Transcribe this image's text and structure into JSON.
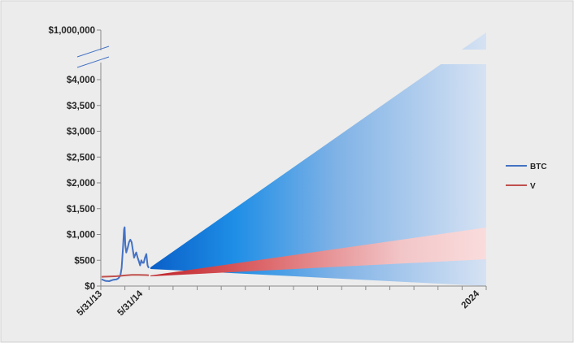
{
  "chart_data": {
    "type": "line",
    "title": "",
    "xlabel": "",
    "ylabel": "",
    "y_axis": {
      "broken": true,
      "lower_range": [
        0,
        4000
      ],
      "tick_step": 500,
      "top_label_value": 1000000,
      "tick_labels": [
        "$0",
        "$500",
        "$1,000",
        "$1,500",
        "$2,000",
        "$2,500",
        "$3,000",
        "$3,500",
        "$4,000",
        "$1,000,000"
      ]
    },
    "x_axis": {
      "tick_labels": [
        "5/31/13",
        "5/31/14",
        "2024"
      ]
    },
    "legend": {
      "placement": "right",
      "entries": [
        {
          "name": "BTC",
          "color": "#4472c4"
        },
        {
          "name": "V",
          "color": "#c0504d"
        }
      ]
    },
    "series": [
      {
        "name": "BTC",
        "color": "#4472c4",
        "x": [
          "2013-05-31",
          "2013-06-30",
          "2013-07-31",
          "2013-08-31",
          "2013-09-30",
          "2013-10-15",
          "2013-10-31",
          "2013-11-10",
          "2013-11-20",
          "2013-11-30",
          "2013-12-05",
          "2013-12-10",
          "2013-12-18",
          "2013-12-24",
          "2013-12-31",
          "2014-01-10",
          "2014-01-20",
          "2014-01-31",
          "2014-02-10",
          "2014-02-20",
          "2014-02-28",
          "2014-03-10",
          "2014-03-20",
          "2014-03-31",
          "2014-04-10",
          "2014-04-20",
          "2014-04-30",
          "2014-05-10",
          "2014-05-20",
          "2014-05-31",
          "2014-06-10",
          "2014-06-20"
        ],
        "values": [
          130,
          100,
          95,
          120,
          130,
          150,
          200,
          350,
          700,
          1100,
          1140,
          800,
          650,
          700,
          750,
          850,
          900,
          850,
          700,
          550,
          600,
          650,
          560,
          480,
          400,
          500,
          450,
          450,
          550,
          620,
          400,
          350
        ]
      },
      {
        "name": "V",
        "color": "#c0504d",
        "x": [
          "2013-05-31",
          "2013-07-31",
          "2013-09-30",
          "2013-11-30",
          "2014-01-31",
          "2014-03-31",
          "2014-05-31",
          "2014-06-20"
        ],
        "values": [
          180,
          185,
          190,
          205,
          215,
          215,
          212,
          210
        ]
      }
    ],
    "projections": [
      {
        "series": "BTC",
        "from": "2014-06-20",
        "to": "2024",
        "upper_end": 1000000,
        "lower_end": 0,
        "color": "#0070c0"
      },
      {
        "series": "V",
        "from": "2014-06-20",
        "to": "2024",
        "upper_end": 1150,
        "lower_end": 500,
        "color": "#c00000"
      }
    ]
  }
}
